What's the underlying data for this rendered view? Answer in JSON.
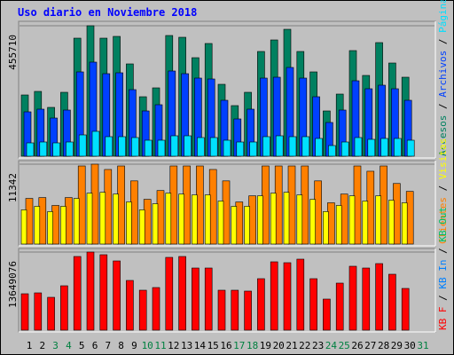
{
  "chart_data": [
    {
      "type": "bar",
      "title": "Uso diario en Noviembre 2018",
      "categories": [
        "1",
        "2",
        "3",
        "4",
        "5",
        "6",
        "7",
        "8",
        "9",
        "10",
        "11",
        "12",
        "13",
        "14",
        "15",
        "16",
        "17",
        "18",
        "19",
        "20",
        "21",
        "22",
        "23",
        "24",
        "25",
        "26",
        "27",
        "28",
        "29",
        "30",
        "31"
      ],
      "category_colors": [
        "#000000",
        "#000000",
        "#008040",
        "#008040",
        "#000000",
        "#000000",
        "#000000",
        "#000000",
        "#000000",
        "#008040",
        "#008040",
        "#000000",
        "#000000",
        "#000000",
        "#000000",
        "#000000",
        "#008040",
        "#008040",
        "#000000",
        "#000000",
        "#000000",
        "#000000",
        "#000000",
        "#008040",
        "#008040",
        "#000000",
        "#000000",
        "#000000",
        "#000000",
        "#000000",
        "#008040"
      ],
      "series": [
        {
          "name": "Accesos",
          "color": "#008060",
          "values": [
            213900,
            226300,
            170500,
            223200,
            412300,
            455710,
            412300,
            418500,
            322400,
            207700,
            238700,
            421600,
            415400,
            344100,
            393700,
            251100,
            176700,
            223200,
            365800,
            406100,
            443300,
            365800,
            294500,
            158100,
            217000,
            368900,
            282100,
            396800,
            325500,
            275900,
            null
          ]
        },
        {
          "name": "Archivos",
          "color": "#0040ff",
          "values": [
            155000,
            164300,
            133300,
            161200,
            294500,
            328600,
            288300,
            291400,
            232500,
            158100,
            179800,
            297600,
            288300,
            272800,
            269700,
            195300,
            130200,
            164300,
            272800,
            275900,
            310000,
            272800,
            207700,
            117800,
            161200,
            263500,
            235600,
            248000,
            235600,
            195300,
            null
          ]
        },
        {
          "name": "Páginas",
          "color": "#00e0ff",
          "values": [
            46500,
            49600,
            46500,
            49600,
            74400,
            86800,
            68200,
            68200,
            65100,
            55800,
            55800,
            71300,
            71300,
            65100,
            65100,
            55800,
            49600,
            49600,
            68200,
            71300,
            68200,
            68200,
            62000,
            37200,
            49600,
            65100,
            58900,
            62000,
            62000,
            55800,
            null
          ]
        }
      ],
      "ylim": [
        0,
        455710
      ],
      "yticks": [
        455710
      ]
    },
    {
      "type": "bar",
      "series": [
        {
          "name": "Clientes",
          "color": "#ff8000",
          "values": [
            6480,
            6600,
            5480,
            6600,
            11090,
            11342,
            10590,
            11090,
            8970,
            6350,
            7600,
            11090,
            11090,
            11090,
            10590,
            8970,
            5980,
            6850,
            11090,
            11090,
            11090,
            11090,
            8970,
            5860,
            7100,
            11090,
            10340,
            11090,
            8600,
            7480,
            null
          ]
        },
        {
          "name": "Visitas",
          "color": "#ffff00",
          "values": [
            4860,
            5360,
            4610,
            5360,
            6480,
            7230,
            7350,
            7100,
            5980,
            4860,
            5730,
            7230,
            7100,
            6980,
            6980,
            6110,
            5360,
            5360,
            6850,
            7230,
            7350,
            6980,
            6350,
            4610,
            5480,
            6850,
            6110,
            6850,
            6230,
            5860,
            null
          ]
        }
      ],
      "ylim": [
        0,
        11342
      ],
      "yticks": [
        11342
      ]
    },
    {
      "type": "bar",
      "series": [
        {
          "name": "KB F",
          "color": "#ff0000",
          "values": [
            6359000,
            6514000,
            5739000,
            7755000,
            12874000,
            13649076,
            13184000,
            12098000,
            8686000,
            6980000,
            7445000,
            12718000,
            12874000,
            10857000,
            10857000,
            6980000,
            6980000,
            6825000,
            8996000,
            11943000,
            11788000,
            12408000,
            8996000,
            5429000,
            8220000,
            11167000,
            10857000,
            11633000,
            9771000,
            7290000,
            null
          ]
        },
        {
          "name": "KB In",
          "color": "#0080ff",
          "values": [
            null,
            null,
            null,
            null,
            null,
            null,
            null,
            null,
            null,
            null,
            null,
            null,
            null,
            null,
            null,
            null,
            null,
            null,
            null,
            null,
            null,
            null,
            null,
            null,
            null,
            null,
            null,
            null,
            null,
            null,
            null
          ]
        },
        {
          "name": "KB Out",
          "color": "#00c060",
          "values": [
            null,
            null,
            null,
            null,
            null,
            null,
            null,
            null,
            null,
            null,
            null,
            null,
            null,
            null,
            null,
            null,
            null,
            null,
            null,
            null,
            null,
            null,
            null,
            null,
            null,
            null,
            null,
            null,
            null,
            null,
            null
          ]
        }
      ],
      "ylim": [
        0,
        13649076
      ],
      "yticks": [
        13649076
      ]
    }
  ]
}
